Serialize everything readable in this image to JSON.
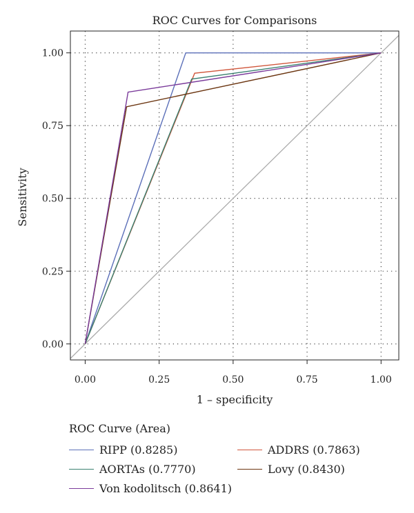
{
  "chart_data": {
    "type": "line",
    "title": "ROC Curves for Comparisons",
    "xlabel": "1 – specificity",
    "ylabel": "Sensitivity",
    "xlim": [
      -0.05,
      1.06
    ],
    "ylim": [
      -0.055,
      1.075
    ],
    "xticks": [
      "0.00",
      "0.25",
      "0.50",
      "0.75",
      "1.00"
    ],
    "yticks": [
      "0.00",
      "0.25",
      "0.50",
      "0.75",
      "1.00"
    ],
    "grid": "dotted",
    "legend_title": "ROC Curve (Area)",
    "legend_position": "bottom",
    "reference_line": {
      "x": [
        -0.05,
        1.06
      ],
      "y": [
        -0.05,
        1.06
      ],
      "color": "#aaaaaa"
    },
    "series": [
      {
        "name": "RIPP (0.8285)",
        "color": "#5b6fb8",
        "x": [
          0,
          0.34,
          1.0
        ],
        "y": [
          0,
          1.0,
          1.0
        ]
      },
      {
        "name": "ADDRS (0.7863)",
        "color": "#d0553a",
        "x": [
          0,
          0.37,
          1.0
        ],
        "y": [
          0,
          0.93,
          1.0
        ]
      },
      {
        "name": "AORTAs (0.7770)",
        "color": "#3a8070",
        "x": [
          0,
          0.36,
          1.0
        ],
        "y": [
          0,
          0.91,
          1.0
        ]
      },
      {
        "name": "Lovy (0.8430)",
        "color": "#6b3510",
        "x": [
          0,
          0.14,
          1.0
        ],
        "y": [
          0,
          0.815,
          1.0
        ]
      },
      {
        "name": "Von kodolitsch (0.8641)",
        "color": "#7a3a9a",
        "x": [
          0,
          0.145,
          1.0
        ],
        "y": [
          0,
          0.865,
          1.0
        ]
      }
    ]
  }
}
